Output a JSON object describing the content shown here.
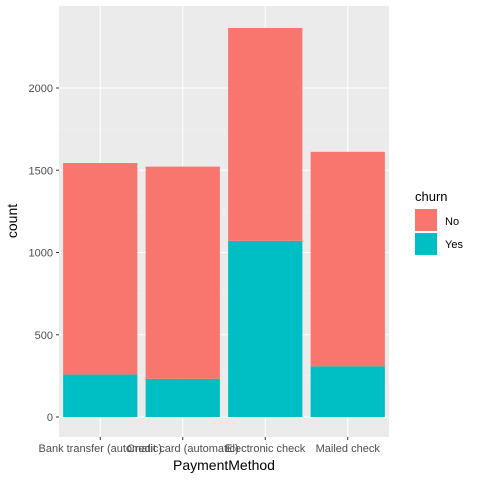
{
  "chart_data": {
    "type": "bar",
    "stacked": true,
    "categories": [
      "Bank transfer (automatic)",
      "Credit card (automatic)",
      "Electronic check",
      "Mailed check"
    ],
    "series": [
      {
        "name": "No",
        "values": [
          1286,
          1290,
          1294,
          1304
        ]
      },
      {
        "name": "Yes",
        "values": [
          258,
          232,
          1071,
          308
        ]
      }
    ],
    "xlabel": "PaymentMethod",
    "ylabel": "count",
    "ylim": [
      0,
      2470
    ],
    "yticks": [
      0,
      500,
      1000,
      1500,
      2000
    ],
    "grid": true,
    "legend": {
      "title": "churn",
      "position": "right"
    },
    "colors": {
      "No": "#F8766D",
      "Yes": "#00BFC4",
      "panel": "#EBEBEB",
      "grid_major": "#FFFFFF",
      "grid_minor": "#F2F2F2"
    }
  }
}
